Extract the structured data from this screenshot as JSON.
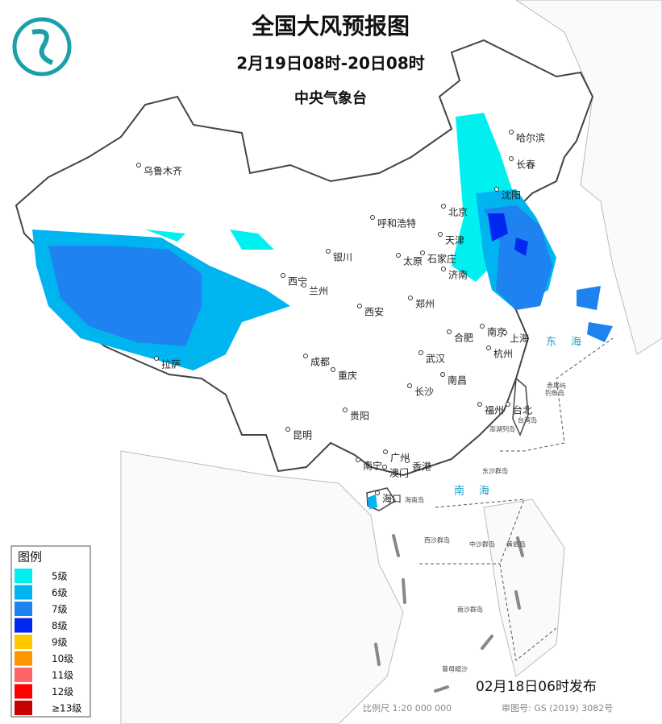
{
  "header": {
    "title": "全国大风预报图",
    "subtitle": "2月19日08时-20日08时",
    "agency": "中央气象台"
  },
  "legend": {
    "title": "图例",
    "items": [
      {
        "label": "5级",
        "color": "#00f0f0"
      },
      {
        "label": "6级",
        "color": "#00b4f0"
      },
      {
        "label": "7级",
        "color": "#1e82f0"
      },
      {
        "label": "8级",
        "color": "#0028f0"
      },
      {
        "label": "9级",
        "color": "#ffc800"
      },
      {
        "label": "10级",
        "color": "#ff9600"
      },
      {
        "label": "11级",
        "color": "#ff6464"
      },
      {
        "label": "12级",
        "color": "#ff0000"
      },
      {
        "label": "≥13级",
        "color": "#c80000"
      }
    ]
  },
  "cities": [
    "乌鲁木齐",
    "哈尔滨",
    "长春",
    "沈阳",
    "北京",
    "天津",
    "呼和浩特",
    "银川",
    "太原",
    "石家庄",
    "济南",
    "西宁",
    "兰州",
    "郑州",
    "西安",
    "南京",
    "合肥",
    "上海",
    "杭州",
    "武汉",
    "成都",
    "重庆",
    "拉萨",
    "南昌",
    "长沙",
    "贵阳",
    "福州",
    "台北",
    "昆明",
    "南宁",
    "广州",
    "澳门",
    "香港",
    "海口"
  ],
  "islands": [
    "赤尾屿",
    "钓鱼岛",
    "台湾岛",
    "澎湖列岛",
    "东沙群岛",
    "海南岛",
    "西沙群岛",
    "中沙群岛",
    "黄岩岛",
    "南沙群岛",
    "曾母暗沙"
  ],
  "seas": [
    "东海",
    "南海"
  ],
  "footer": {
    "issued": "02月18日06时发布",
    "scale": "比例尺 1:20 000 000",
    "review": "审图号: GS (2019) 3082号"
  }
}
